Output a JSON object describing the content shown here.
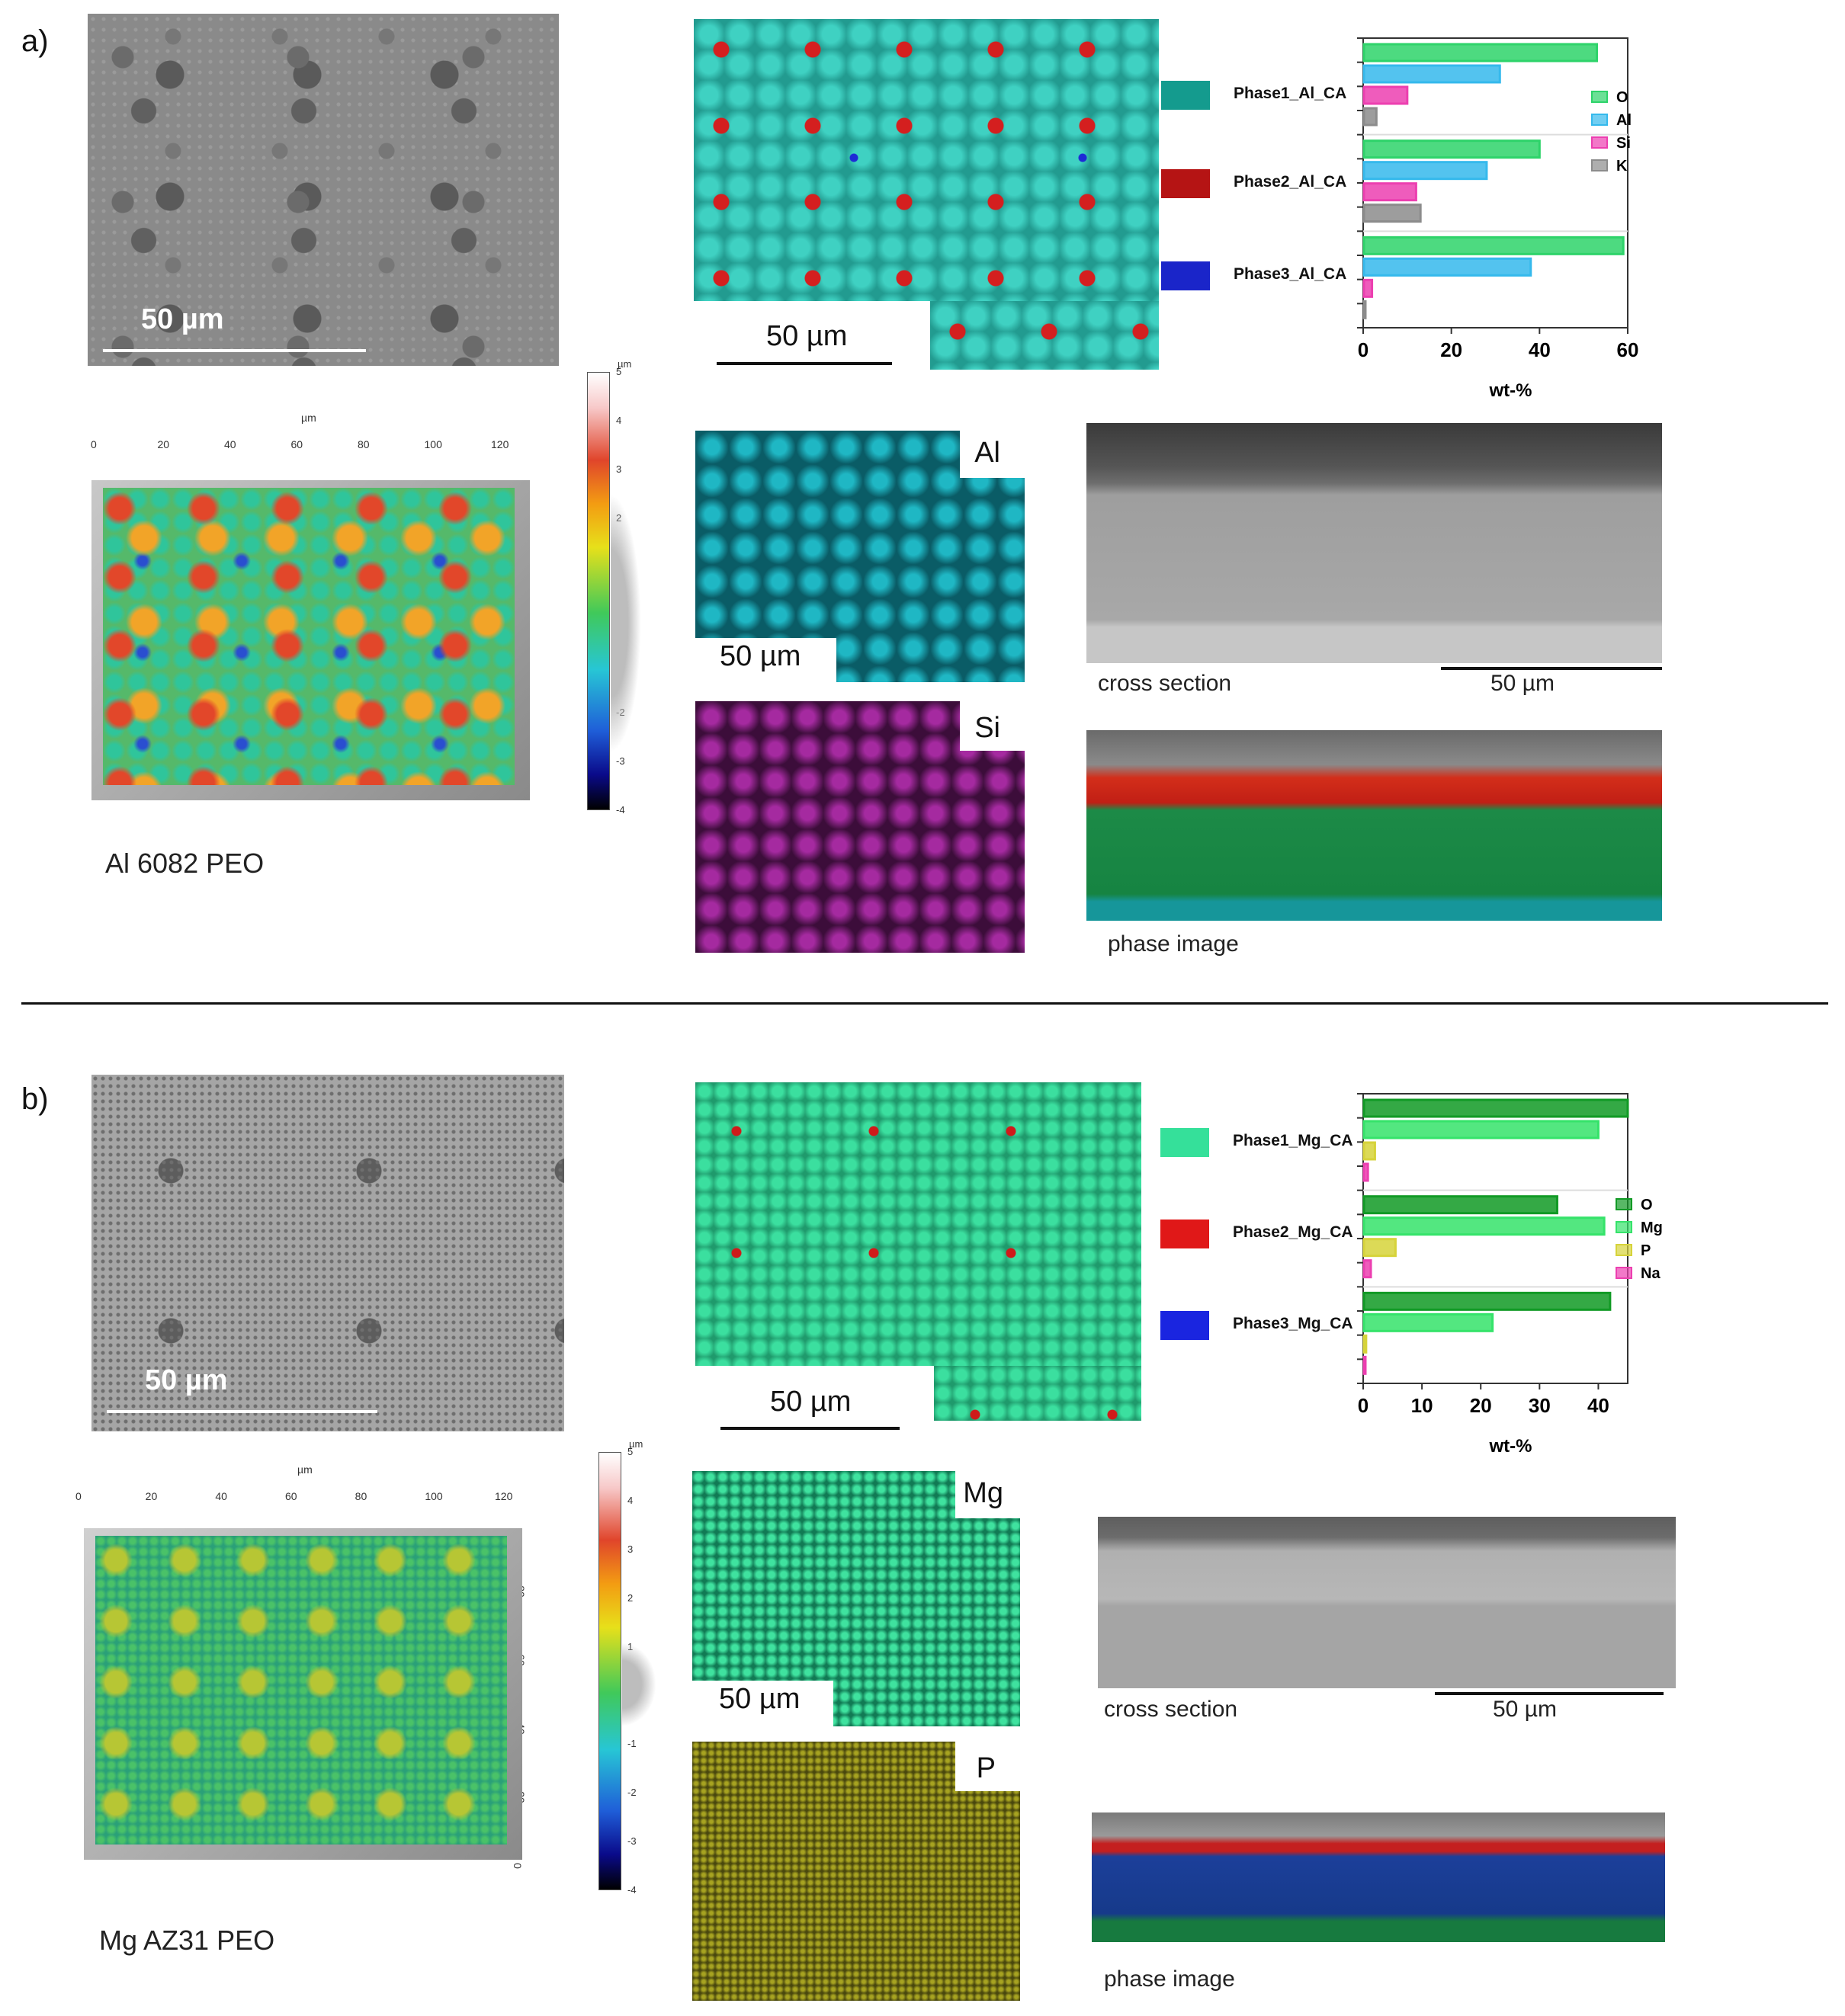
{
  "panel_a": {
    "label": "a)",
    "sem_scale": "50 µm",
    "phase_map_scale": "50 µm",
    "topo_axis_unit": "µm",
    "topo_x_ticks": [
      "0",
      "20",
      "40",
      "60",
      "80",
      "100",
      "120"
    ],
    "colorbar_unit": "µm",
    "colorbar_ticks": [
      "5",
      "4",
      "3",
      "2",
      "1",
      "0",
      "-1",
      "-2",
      "-3",
      "-4"
    ],
    "sample_name": "Al 6082 PEO",
    "element_map_1": {
      "label": "Al",
      "scale": "50 µm"
    },
    "element_map_2": {
      "label": "Si"
    },
    "cross_section_caption": "cross section",
    "cross_section_scale": "50 µm",
    "phase_image_caption": "phase image",
    "phases": [
      {
        "name": "Phase1_Al_CA",
        "color": "#149b8e"
      },
      {
        "name": "Phase2_Al_CA",
        "color": "#b51414"
      },
      {
        "name": "Phase3_Al_CA",
        "color": "#1a25c9"
      }
    ],
    "chart_legend": [
      {
        "name": "O",
        "color": "#2ed36a"
      },
      {
        "name": "Al",
        "color": "#35b9ec"
      },
      {
        "name": "Si",
        "color": "#ec3fb0"
      },
      {
        "name": "K",
        "color": "#8c8c8c"
      }
    ]
  },
  "panel_b": {
    "label": "b)",
    "sem_scale": "50 µm",
    "phase_map_scale": "50 µm",
    "topo_axis_unit": "µm",
    "topo_x_ticks": [
      "0",
      "20",
      "40",
      "60",
      "80",
      "100",
      "120"
    ],
    "topo_y_ticks": [
      "80",
      "60",
      "40",
      "20",
      "0"
    ],
    "colorbar_unit": "µm",
    "colorbar_ticks": [
      "5",
      "4",
      "3",
      "2",
      "1",
      "0",
      "-1",
      "-2",
      "-3",
      "-4"
    ],
    "sample_name": "Mg AZ31 PEO",
    "element_map_1": {
      "label": "Mg",
      "scale": "50 µm"
    },
    "element_map_2": {
      "label": "P"
    },
    "cross_section_caption": "cross section",
    "cross_section_scale": "50 µm",
    "phase_image_caption": "phase image",
    "phases": [
      {
        "name": "Phase1_Mg_CA",
        "color": "#35e09a"
      },
      {
        "name": "Phase2_Mg_CA",
        "color": "#e01818"
      },
      {
        "name": "Phase3_Mg_CA",
        "color": "#1a25e0"
      }
    ],
    "chart_legend": [
      {
        "name": "O",
        "color": "#119a25"
      },
      {
        "name": "Mg",
        "color": "#35e36a"
      },
      {
        "name": "P",
        "color": "#d6d33a"
      },
      {
        "name": "Na",
        "color": "#ec3fb0"
      }
    ]
  },
  "chart_data": [
    {
      "type": "bar",
      "orientation": "horizontal",
      "categories": [
        "Phase1_Al_CA",
        "Phase2_Al_CA",
        "Phase3_Al_CA"
      ],
      "series": [
        {
          "name": "O",
          "values": [
            53,
            40,
            59
          ]
        },
        {
          "name": "Al",
          "values": [
            31,
            28,
            38
          ]
        },
        {
          "name": "Si",
          "values": [
            10,
            12,
            2
          ]
        },
        {
          "name": "K",
          "values": [
            3,
            13,
            0.5
          ]
        }
      ],
      "xlabel": "wt-%",
      "xlim": [
        0,
        60
      ],
      "xticks": [
        "0",
        "20",
        "40",
        "60"
      ],
      "legend": "right"
    },
    {
      "type": "bar",
      "orientation": "horizontal",
      "categories": [
        "Phase1_Mg_CA",
        "Phase2_Mg_CA",
        "Phase3_Mg_CA"
      ],
      "series": [
        {
          "name": "O",
          "values": [
            45,
            33,
            42
          ]
        },
        {
          "name": "Mg",
          "values": [
            40,
            41,
            22
          ]
        },
        {
          "name": "P",
          "values": [
            2,
            5.5,
            0.5
          ]
        },
        {
          "name": "Na",
          "values": [
            0.8,
            1.3,
            0.3
          ]
        }
      ],
      "xlabel": "wt-%",
      "xlim": [
        0,
        45
      ],
      "xticks": [
        "0",
        "10",
        "20",
        "30",
        "40"
      ],
      "legend": "right"
    }
  ]
}
